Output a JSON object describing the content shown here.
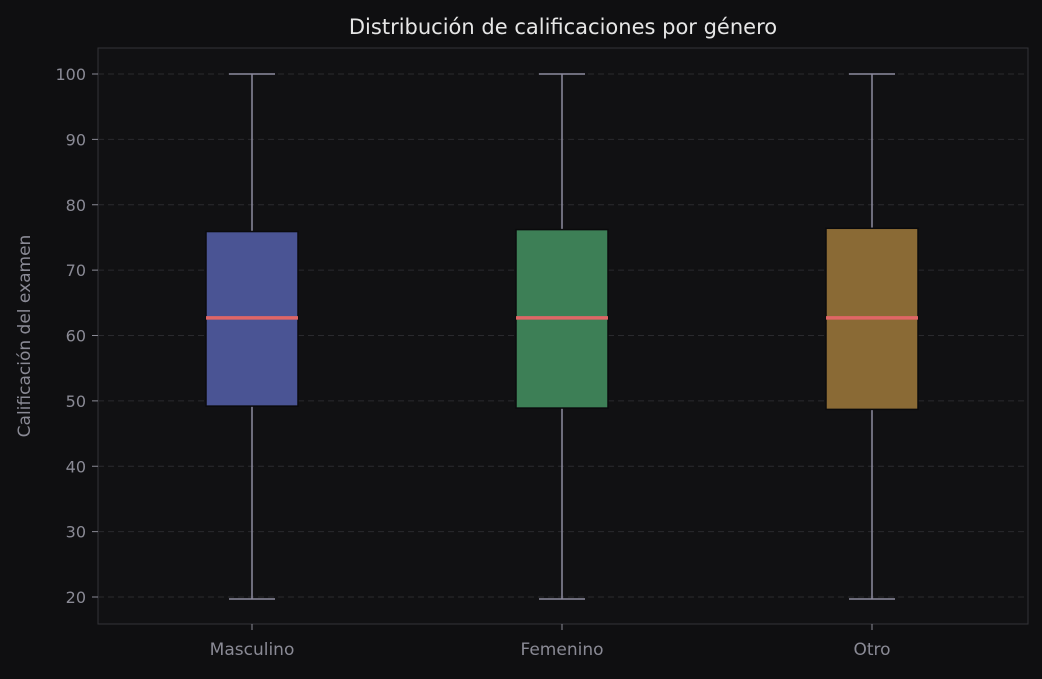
{
  "chart_data": {
    "type": "boxplot",
    "title": "Distribución de calificaciones por género",
    "xlabel": "",
    "ylabel": "Calificación del examen",
    "ylim": [
      16,
      104
    ],
    "yticks": [
      20,
      30,
      40,
      50,
      60,
      70,
      80,
      90,
      100
    ],
    "grid": true,
    "categories": [
      "Masculino",
      "Femenino",
      "Otro"
    ],
    "boxes": [
      {
        "category": "Masculino",
        "whisker_low": 19.7,
        "q1": 49.2,
        "median": 62.7,
        "q3": 75.9,
        "whisker_high": 100,
        "color": "#4a5494"
      },
      {
        "category": "Femenino",
        "whisker_low": 19.7,
        "q1": 48.9,
        "median": 62.7,
        "q3": 76.2,
        "whisker_high": 100,
        "color": "#3d7f56"
      },
      {
        "category": "Otro",
        "whisker_low": 19.7,
        "q1": 48.7,
        "median": 62.7,
        "q3": 76.4,
        "whisker_high": 100,
        "color": "#8a6a35"
      }
    ],
    "colors": {
      "background": "#0f0f11",
      "plot_background": "#111113",
      "median": "#e06666",
      "whisker": "#8e8ca0",
      "text": "#8a8a95",
      "title": "#e6e6e6"
    }
  }
}
